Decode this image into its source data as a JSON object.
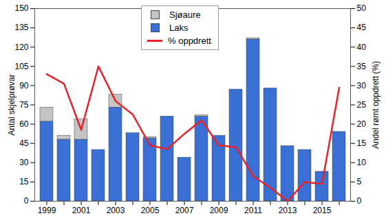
{
  "chart_data": {
    "type": "bar",
    "stacked": true,
    "categories": [
      "1999",
      null,
      "2001",
      null,
      "2003",
      null,
      "2005",
      null,
      "2007",
      null,
      "2009",
      null,
      "2011",
      null,
      "2013",
      null,
      "2015",
      null
    ],
    "series": [
      {
        "name": "Sjøaure",
        "type": "bar",
        "color": "#c4c4c4",
        "values": [
          11,
          3,
          16,
          0,
          10,
          0,
          1,
          0,
          0,
          1,
          0,
          0,
          1,
          0,
          0,
          0,
          0,
          0
        ]
      },
      {
        "name": "Laks",
        "type": "bar",
        "color": "#3a6fd6",
        "values": [
          62,
          48,
          48,
          40,
          73,
          53,
          49,
          66,
          34,
          66,
          51,
          87,
          126,
          88,
          43,
          40,
          23,
          54
        ]
      },
      {
        "name": "% oppdrett",
        "type": "line",
        "axis": "y2",
        "color": "#e8202a",
        "values": [
          33,
          30.5,
          18.5,
          35,
          26,
          22.5,
          14.5,
          13.5,
          17.5,
          21,
          14.5,
          14,
          6.5,
          3.5,
          0,
          5,
          4.5,
          29.5
        ]
      }
    ],
    "ylabel": "Antal skjelprøvar",
    "y2label": "Andel rømt oppdrett (%)",
    "ylim": [
      0,
      150
    ],
    "yticks": [
      0,
      15,
      30,
      45,
      60,
      75,
      90,
      105,
      120,
      135,
      150
    ],
    "y2lim": [
      0,
      50
    ],
    "y2ticks": [
      0,
      5,
      10,
      15,
      20,
      25,
      30,
      35,
      40,
      45,
      50
    ],
    "legend": "top"
  }
}
